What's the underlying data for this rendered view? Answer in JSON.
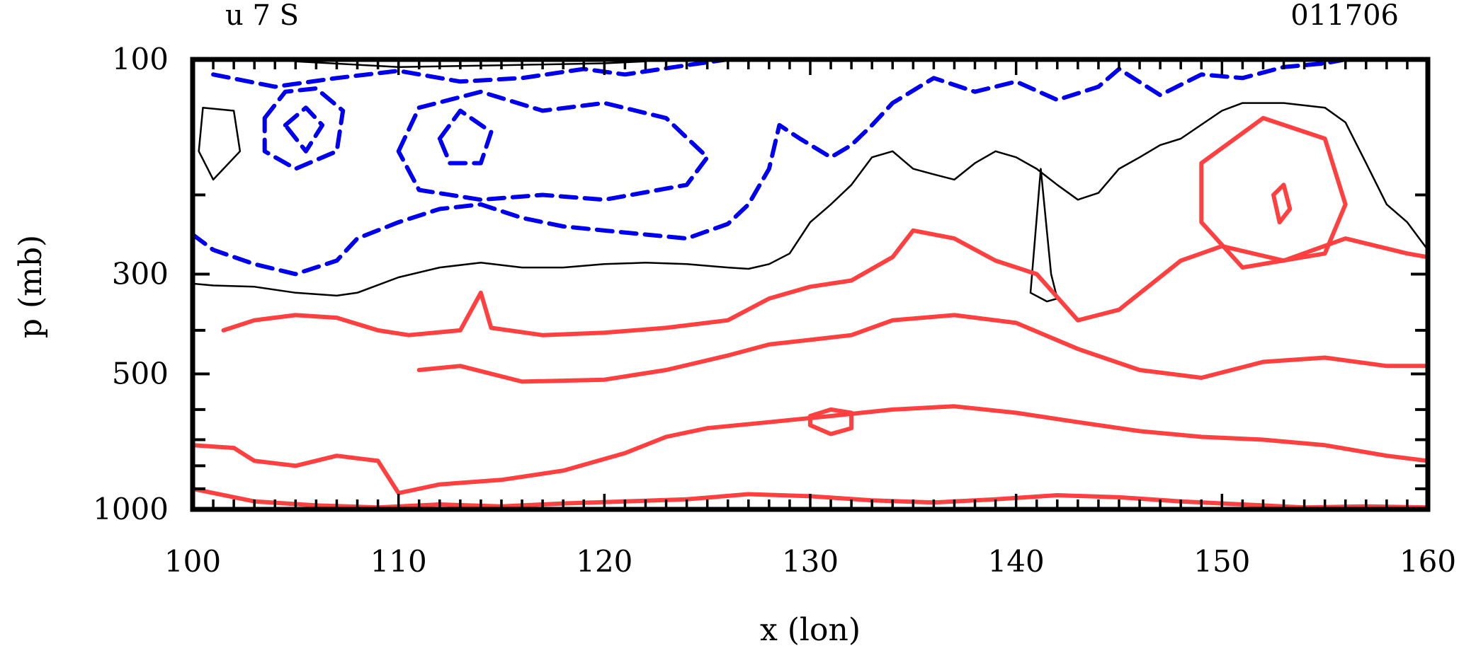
{
  "chart_data": {
    "type": "contour",
    "title_left": "u 7 S",
    "title_right": "011706",
    "xlabel": "x (lon)",
    "ylabel": "p (mb)",
    "xlim": [
      100,
      160
    ],
    "ylim": [
      1000,
      100
    ],
    "y_scale": "log",
    "x_tick_labels": [
      "100",
      "110",
      "120",
      "130",
      "140",
      "150",
      "160"
    ],
    "y_tick_labels": [
      "100",
      "300",
      "500",
      "1000"
    ],
    "grid": false,
    "colors": {
      "positive": "#ff4040",
      "negative": "#0000ee",
      "zero": "#000000"
    },
    "contours": [
      {
        "name": "zero-line-main",
        "level": "zero",
        "points": [
          [
            100,
            315
          ],
          [
            101,
            318
          ],
          [
            103,
            320
          ],
          [
            105,
            330
          ],
          [
            107,
            335
          ],
          [
            108,
            330
          ],
          [
            110,
            305
          ],
          [
            112,
            290
          ],
          [
            114,
            283
          ],
          [
            116,
            290
          ],
          [
            118,
            290
          ],
          [
            120,
            285
          ],
          [
            122,
            283
          ],
          [
            124,
            285
          ],
          [
            126,
            290
          ],
          [
            127,
            292
          ],
          [
            128,
            285
          ],
          [
            129,
            270
          ],
          [
            130,
            230
          ],
          [
            131,
            210
          ],
          [
            132,
            190
          ],
          [
            133,
            165
          ],
          [
            134,
            160
          ],
          [
            135,
            175
          ],
          [
            136,
            180
          ],
          [
            137,
            185
          ],
          [
            138,
            170
          ],
          [
            139,
            160
          ],
          [
            140,
            165
          ],
          [
            141,
            175
          ],
          [
            142,
            190
          ],
          [
            143,
            205
          ],
          [
            144,
            198
          ],
          [
            145,
            175
          ],
          [
            146,
            165
          ],
          [
            147,
            155
          ],
          [
            148,
            150
          ],
          [
            150,
            130
          ],
          [
            151,
            125
          ],
          [
            153,
            125
          ],
          [
            155,
            128
          ],
          [
            156,
            138
          ],
          [
            157,
            170
          ],
          [
            158,
            210
          ],
          [
            159,
            230
          ],
          [
            160,
            265
          ]
        ]
      },
      {
        "name": "zero-line-top",
        "level": "zero",
        "points": [
          [
            105,
            101
          ],
          [
            110,
            104
          ],
          [
            115,
            103
          ],
          [
            120,
            102
          ],
          [
            122,
            101
          ]
        ]
      },
      {
        "name": "zero-line-spike",
        "level": "zero",
        "points": [
          [
            140.7,
            330
          ],
          [
            141.2,
            175
          ],
          [
            141.7,
            300
          ],
          [
            142.0,
            340
          ],
          [
            141.5,
            345
          ],
          [
            140.7,
            330
          ]
        ]
      },
      {
        "name": "zero-line-left",
        "level": "zero",
        "points": [
          [
            100.5,
            128
          ],
          [
            102,
            130
          ],
          [
            102.3,
            160
          ],
          [
            101,
            185
          ],
          [
            100.3,
            160
          ],
          [
            100.5,
            128
          ]
        ]
      },
      {
        "name": "negative-outer",
        "level": "negative",
        "points": [
          [
            100,
            245
          ],
          [
            101,
            265
          ],
          [
            103,
            285
          ],
          [
            105,
            300
          ],
          [
            107,
            280
          ],
          [
            108,
            250
          ],
          [
            110,
            230
          ],
          [
            112,
            215
          ],
          [
            114,
            210
          ],
          [
            116,
            225
          ],
          [
            118,
            235
          ],
          [
            120,
            240
          ],
          [
            122,
            245
          ],
          [
            124,
            250
          ],
          [
            126,
            232
          ],
          [
            127,
            210
          ],
          [
            128,
            175
          ],
          [
            128.5,
            140
          ],
          [
            129.5,
            150
          ],
          [
            131,
            165
          ],
          [
            132,
            155
          ],
          [
            133,
            140
          ],
          [
            134,
            125
          ],
          [
            136,
            110
          ],
          [
            138,
            118
          ],
          [
            140,
            112
          ],
          [
            142,
            123
          ],
          [
            144,
            115
          ],
          [
            145,
            105
          ],
          [
            147,
            120
          ],
          [
            149,
            108
          ],
          [
            151,
            110
          ],
          [
            153,
            104
          ],
          [
            155,
            102
          ],
          [
            156,
            100
          ]
        ]
      },
      {
        "name": "negative-ring-left",
        "level": "negative",
        "points": [
          [
            103.5,
            135
          ],
          [
            104.5,
            118
          ],
          [
            106,
            116
          ],
          [
            107.3,
            130
          ],
          [
            107,
            160
          ],
          [
            105,
            175
          ],
          [
            103.5,
            160
          ],
          [
            103.5,
            135
          ]
        ]
      },
      {
        "name": "negative-ring-left-inner",
        "level": "negative",
        "points": [
          [
            104.5,
            140
          ],
          [
            105.5,
            128
          ],
          [
            106.3,
            140
          ],
          [
            105.5,
            160
          ],
          [
            104.5,
            140
          ]
        ]
      },
      {
        "name": "negative-ring-mid",
        "level": "negative",
        "points": [
          [
            110,
            160
          ],
          [
            111,
            128
          ],
          [
            114,
            118
          ],
          [
            117,
            130
          ],
          [
            120,
            125
          ],
          [
            123,
            135
          ],
          [
            125,
            165
          ],
          [
            124,
            190
          ],
          [
            120,
            205
          ],
          [
            117,
            200
          ],
          [
            114,
            205
          ],
          [
            111,
            195
          ],
          [
            110,
            160
          ]
        ]
      },
      {
        "name": "negative-ring-mid-inner",
        "level": "negative",
        "points": [
          [
            112,
            150
          ],
          [
            113,
            130
          ],
          [
            114.5,
            145
          ],
          [
            114,
            170
          ],
          [
            112.5,
            170
          ],
          [
            112,
            150
          ]
        ]
      },
      {
        "name": "negative-top-band",
        "level": "negative",
        "points": [
          [
            101,
            108
          ],
          [
            104,
            115
          ],
          [
            107,
            110
          ],
          [
            110,
            106
          ],
          [
            113,
            112
          ],
          [
            116,
            110
          ],
          [
            119,
            105
          ],
          [
            121,
            108
          ],
          [
            124,
            103
          ],
          [
            126,
            100
          ]
        ]
      },
      {
        "name": "positive-lower-left",
        "level": "positive",
        "points": [
          [
            101.5,
            400
          ],
          [
            103,
            380
          ],
          [
            105,
            370
          ],
          [
            107,
            375
          ],
          [
            109,
            400
          ],
          [
            110.5,
            410
          ],
          [
            113,
            400
          ],
          [
            114,
            330
          ],
          [
            114.5,
            395
          ],
          [
            117,
            410
          ],
          [
            120,
            405
          ],
          [
            123,
            395
          ],
          [
            126,
            380
          ],
          [
            128,
            340
          ],
          [
            130,
            320
          ],
          [
            132,
            310
          ],
          [
            134,
            275
          ],
          [
            135,
            240
          ],
          [
            137,
            250
          ],
          [
            139,
            280
          ],
          [
            141,
            300
          ],
          [
            143,
            380
          ],
          [
            145,
            360
          ],
          [
            148,
            280
          ],
          [
            150,
            260
          ],
          [
            153,
            280
          ],
          [
            156,
            250
          ],
          [
            159,
            270
          ],
          [
            160,
            275
          ]
        ]
      },
      {
        "name": "positive-mid-band",
        "level": "positive",
        "points": [
          [
            111,
            490
          ],
          [
            113,
            480
          ],
          [
            116,
            520
          ],
          [
            120,
            515
          ],
          [
            123,
            490
          ],
          [
            126,
            455
          ],
          [
            128,
            430
          ],
          [
            130,
            420
          ],
          [
            132,
            410
          ],
          [
            134,
            380
          ],
          [
            137,
            370
          ],
          [
            140,
            385
          ],
          [
            143,
            440
          ],
          [
            146,
            490
          ],
          [
            149,
            510
          ],
          [
            152,
            470
          ],
          [
            155,
            460
          ],
          [
            158,
            480
          ],
          [
            160,
            480
          ]
        ]
      },
      {
        "name": "positive-lower-band",
        "level": "positive",
        "points": [
          [
            100,
            720
          ],
          [
            102,
            730
          ],
          [
            103,
            780
          ],
          [
            105,
            800
          ],
          [
            107,
            760
          ],
          [
            109,
            780
          ],
          [
            110,
            920
          ],
          [
            112,
            880
          ],
          [
            115,
            860
          ],
          [
            118,
            820
          ],
          [
            121,
            750
          ],
          [
            123,
            690
          ],
          [
            125,
            660
          ],
          [
            128,
            640
          ],
          [
            131,
            620
          ],
          [
            134,
            600
          ],
          [
            137,
            590
          ],
          [
            140,
            610
          ],
          [
            143,
            640
          ],
          [
            146,
            670
          ],
          [
            149,
            690
          ],
          [
            152,
            700
          ],
          [
            155,
            720
          ],
          [
            158,
            760
          ],
          [
            160,
            780
          ]
        ]
      },
      {
        "name": "positive-bottom-band",
        "level": "positive",
        "points": [
          [
            100,
            900
          ],
          [
            103,
            960
          ],
          [
            106,
            980
          ],
          [
            109,
            990
          ],
          [
            112,
            975
          ],
          [
            115,
            985
          ],
          [
            118,
            970
          ],
          [
            121,
            960
          ],
          [
            124,
            950
          ],
          [
            127,
            925
          ],
          [
            130,
            935
          ],
          [
            133,
            955
          ],
          [
            136,
            965
          ],
          [
            139,
            950
          ],
          [
            142,
            930
          ],
          [
            145,
            940
          ],
          [
            148,
            960
          ],
          [
            151,
            975
          ],
          [
            154,
            990
          ],
          [
            157,
            985
          ],
          [
            160,
            990
          ]
        ]
      },
      {
        "name": "positive-blob-a",
        "level": "positive",
        "points": [
          [
            130,
            620
          ],
          [
            131,
            600
          ],
          [
            132,
            610
          ],
          [
            132,
            660
          ],
          [
            131,
            680
          ],
          [
            130,
            650
          ],
          [
            130,
            620
          ]
        ]
      },
      {
        "name": "positive-blob-b",
        "level": "positive",
        "points": [
          [
            149,
            170
          ],
          [
            152,
            135
          ],
          [
            155,
            150
          ],
          [
            156,
            210
          ],
          [
            155,
            270
          ],
          [
            151,
            290
          ],
          [
            149,
            230
          ],
          [
            149,
            170
          ]
        ]
      },
      {
        "name": "positive-blob-c",
        "level": "positive",
        "points": [
          [
            152.5,
            200
          ],
          [
            153,
            190
          ],
          [
            153.3,
            215
          ],
          [
            152.8,
            230
          ],
          [
            152.5,
            200
          ]
        ]
      }
    ]
  }
}
